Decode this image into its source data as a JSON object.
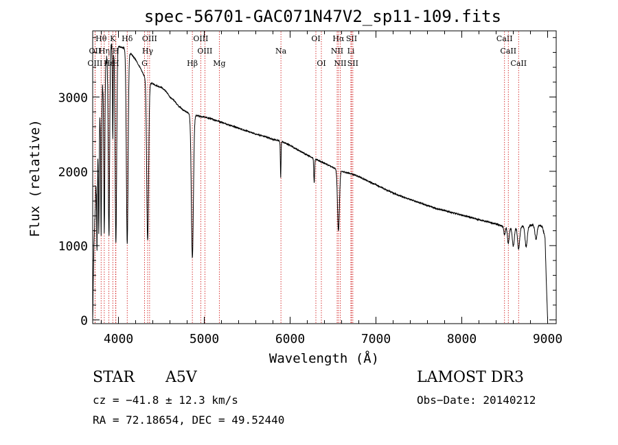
{
  "chart_data": {
    "type": "line",
    "title": "spec-56701-GAC071N47V2_sp11-109.fits",
    "xlabel": "Wavelength (Å)",
    "ylabel": "Flux (relative)",
    "xlim": [
      3700,
      9100
    ],
    "ylim": [
      -50,
      3890
    ],
    "x_ticks": [
      4000,
      5000,
      6000,
      7000,
      8000,
      9000
    ],
    "x_tick_labels": [
      "4000",
      "5000",
      "6000",
      "7000",
      "8000",
      "9000"
    ],
    "y_ticks": [
      0,
      1000,
      2000,
      3000
    ],
    "y_tick_labels": [
      "0",
      "1000",
      "2000",
      "3000"
    ],
    "series": [
      {
        "name": "spectrum",
        "continuum": [
          [
            3700,
            0
          ],
          [
            3712,
            900
          ],
          [
            3735,
            1700
          ],
          [
            3760,
            2200
          ],
          [
            3790,
            2850
          ],
          [
            3830,
            3300
          ],
          [
            3870,
            3550
          ],
          [
            3910,
            3680
          ],
          [
            3960,
            3700
          ],
          [
            4010,
            3680
          ],
          [
            4060,
            3660
          ],
          [
            4110,
            3620
          ],
          [
            4160,
            3560
          ],
          [
            4200,
            3500
          ],
          [
            4260,
            3380
          ],
          [
            4300,
            3280
          ],
          [
            4350,
            3200
          ],
          [
            4400,
            3180
          ],
          [
            4450,
            3150
          ],
          [
            4500,
            3130
          ],
          [
            4550,
            3080
          ],
          [
            4600,
            3000
          ],
          [
            4650,
            2950
          ],
          [
            4700,
            2880
          ],
          [
            4750,
            2830
          ],
          [
            4800,
            2790
          ],
          [
            4900,
            2750
          ],
          [
            5000,
            2730
          ],
          [
            5100,
            2700
          ],
          [
            5200,
            2660
          ],
          [
            5300,
            2620
          ],
          [
            5400,
            2580
          ],
          [
            5500,
            2540
          ],
          [
            5600,
            2500
          ],
          [
            5700,
            2470
          ],
          [
            5800,
            2430
          ],
          [
            5900,
            2400
          ],
          [
            6000,
            2350
          ],
          [
            6100,
            2280
          ],
          [
            6200,
            2220
          ],
          [
            6300,
            2160
          ],
          [
            6400,
            2110
          ],
          [
            6500,
            2050
          ],
          [
            6600,
            2000
          ],
          [
            6700,
            1970
          ],
          [
            6800,
            1930
          ],
          [
            6900,
            1870
          ],
          [
            7000,
            1820
          ],
          [
            7100,
            1760
          ],
          [
            7200,
            1710
          ],
          [
            7300,
            1660
          ],
          [
            7400,
            1620
          ],
          [
            7500,
            1580
          ],
          [
            7600,
            1540
          ],
          [
            7700,
            1500
          ],
          [
            7800,
            1470
          ],
          [
            7900,
            1440
          ],
          [
            8000,
            1410
          ],
          [
            8100,
            1380
          ],
          [
            8200,
            1350
          ],
          [
            8300,
            1320
          ],
          [
            8400,
            1290
          ],
          [
            8500,
            1250
          ],
          [
            8600,
            1240
          ],
          [
            8700,
            1260
          ],
          [
            8800,
            1270
          ],
          [
            8880,
            1290
          ],
          [
            8940,
            1250
          ],
          [
            8970,
            1100
          ],
          [
            8985,
            500
          ],
          [
            9000,
            0
          ]
        ],
        "absorption_lines": [
          {
            "center": 3750,
            "depth": 1050,
            "width": 4
          },
          {
            "center": 3771,
            "depth": 1300,
            "width": 4
          },
          {
            "center": 3798,
            "depth": 1750,
            "width": 5
          },
          {
            "center": 3835,
            "depth": 2150,
            "width": 6
          },
          {
            "center": 3889,
            "depth": 2500,
            "width": 8
          },
          {
            "center": 3934,
            "depth": 1300,
            "width": 4
          },
          {
            "center": 3970,
            "depth": 2650,
            "width": 9
          },
          {
            "center": 4102,
            "depth": 2600,
            "width": 10
          },
          {
            "center": 4340,
            "depth": 2150,
            "width": 11
          },
          {
            "center": 4861,
            "depth": 1930,
            "width": 12
          },
          {
            "center": 5890,
            "depth": 480,
            "width": 4
          },
          {
            "center": 6280,
            "depth": 320,
            "width": 5
          },
          {
            "center": 6563,
            "depth": 820,
            "width": 11
          },
          {
            "center": 8498,
            "depth": 110,
            "width": 8
          },
          {
            "center": 8542,
            "depth": 220,
            "width": 10
          },
          {
            "center": 8600,
            "depth": 250,
            "width": 12
          },
          {
            "center": 8662,
            "depth": 300,
            "width": 12
          },
          {
            "center": 8750,
            "depth": 280,
            "width": 13
          },
          {
            "center": 8865,
            "depth": 200,
            "width": 13
          }
        ]
      }
    ],
    "line_markers": [
      {
        "label": "Hθ",
        "x": 3798,
        "row": 0
      },
      {
        "label": "OII",
        "x": 3727,
        "row": 1
      },
      {
        "label": "Hη",
        "x": 3835,
        "row": 1
      },
      {
        "label": "OIII",
        "x": 3727,
        "row": 2
      },
      {
        "label": "Hε",
        "x": 3889,
        "row": 2
      },
      {
        "label": "K",
        "x": 3934,
        "row": 0
      },
      {
        "label": "H",
        "x": 3968,
        "row": 1
      },
      {
        "label": "Hδ",
        "x": 4102,
        "row": 0
      },
      {
        "label": "H",
        "x": 3970,
        "row": 2
      },
      {
        "label": "OIII",
        "x": 4363,
        "row": 0
      },
      {
        "label": "Hγ",
        "x": 4340,
        "row": 1
      },
      {
        "label": "G",
        "x": 4304,
        "row": 2
      },
      {
        "label": "OIII",
        "x": 4959,
        "row": 0
      },
      {
        "label": "OIII",
        "x": 5007,
        "row": 1
      },
      {
        "label": "Hβ",
        "x": 4861,
        "row": 2
      },
      {
        "label": "Mg",
        "x": 5175,
        "row": 2
      },
      {
        "label": "Na",
        "x": 5893,
        "row": 1
      },
      {
        "label": "OI",
        "x": 6300,
        "row": 0
      },
      {
        "label": "OI",
        "x": 6364,
        "row": 2
      },
      {
        "label": "Hα",
        "x": 6563,
        "row": 0
      },
      {
        "label": "SII",
        "x": 6716,
        "row": 0
      },
      {
        "label": "NII",
        "x": 6548,
        "row": 1
      },
      {
        "label": "Li",
        "x": 6708,
        "row": 1
      },
      {
        "label": "NII",
        "x": 6584,
        "row": 2
      },
      {
        "label": "SII",
        "x": 6731,
        "row": 2
      },
      {
        "label": "CaII",
        "x": 8498,
        "row": 0
      },
      {
        "label": "CaII",
        "x": 8542,
        "row": 1
      },
      {
        "label": "CaII",
        "x": 8662,
        "row": 2
      }
    ]
  },
  "info": {
    "object_type": "STAR",
    "subclass": "A5V",
    "survey": "LAMOST DR3",
    "redshift": "cz = −41.8 ± 12.3 km/s",
    "obs_date": "Obs−Date: 20140212",
    "coords": "RA =  72.18654, DEC =  49.52440"
  },
  "colors": {
    "axes": "#000000",
    "spectrum": "#000000",
    "marker_lines": "#cc0000",
    "background": "#ffffff"
  }
}
